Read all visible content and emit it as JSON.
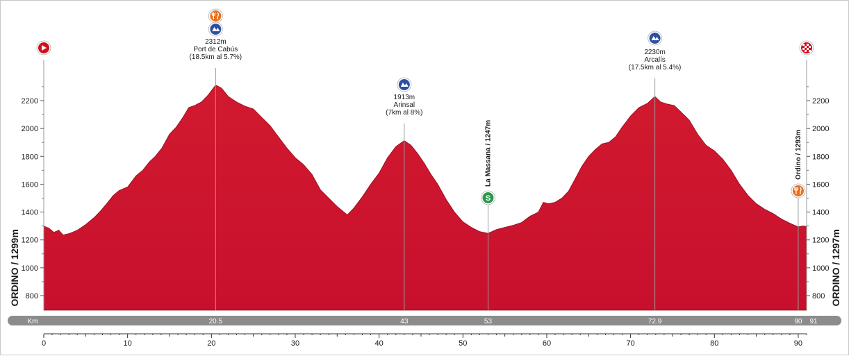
{
  "chart_data": {
    "type": "area",
    "ylabel_left": "ORDINO / 1299m",
    "ylabel_right": "ORDINO / 1297m",
    "ylim": [
      700,
      2450
    ],
    "xlim": [
      0,
      91
    ],
    "y_ticks": [
      800,
      1000,
      1200,
      1400,
      1600,
      1800,
      2000,
      2200
    ],
    "x_ticks": [
      0,
      10,
      20,
      30,
      40,
      50,
      60,
      70,
      80,
      90
    ],
    "km_bar": {
      "label": "Km",
      "marks": [
        {
          "x": 20.5,
          "label": "20.5"
        },
        {
          "x": 43,
          "label": "43"
        },
        {
          "x": 53,
          "label": "53"
        },
        {
          "x": 72.9,
          "label": "72.9"
        },
        {
          "x": 90,
          "label": "90"
        }
      ],
      "end_label": "91"
    },
    "fill_color": "#c8102e",
    "profile": [
      [
        0,
        1299
      ],
      [
        0.6,
        1285
      ],
      [
        1.2,
        1255
      ],
      [
        1.8,
        1270
      ],
      [
        2.3,
        1235
      ],
      [
        3,
        1245
      ],
      [
        4,
        1270
      ],
      [
        5,
        1310
      ],
      [
        6,
        1360
      ],
      [
        6.8,
        1410
      ],
      [
        7.5,
        1460
      ],
      [
        8.3,
        1520
      ],
      [
        9,
        1555
      ],
      [
        10,
        1580
      ],
      [
        11,
        1660
      ],
      [
        11.8,
        1700
      ],
      [
        12.6,
        1760
      ],
      [
        13.3,
        1800
      ],
      [
        14.1,
        1860
      ],
      [
        15,
        1960
      ],
      [
        15.8,
        2010
      ],
      [
        16.6,
        2080
      ],
      [
        17.3,
        2150
      ],
      [
        18,
        2165
      ],
      [
        18.8,
        2190
      ],
      [
        19.6,
        2240
      ],
      [
        20.5,
        2312
      ],
      [
        21.2,
        2290
      ],
      [
        22,
        2230
      ],
      [
        23,
        2190
      ],
      [
        24,
        2160
      ],
      [
        25,
        2140
      ],
      [
        26,
        2080
      ],
      [
        27,
        2020
      ],
      [
        28,
        1940
      ],
      [
        29,
        1860
      ],
      [
        30,
        1790
      ],
      [
        31,
        1740
      ],
      [
        32,
        1670
      ],
      [
        33,
        1560
      ],
      [
        34,
        1500
      ],
      [
        35,
        1440
      ],
      [
        36.2,
        1380
      ],
      [
        37,
        1430
      ],
      [
        38,
        1510
      ],
      [
        39,
        1600
      ],
      [
        40,
        1680
      ],
      [
        41,
        1790
      ],
      [
        42,
        1870
      ],
      [
        43,
        1913
      ],
      [
        43.8,
        1880
      ],
      [
        44.6,
        1820
      ],
      [
        45.4,
        1750
      ],
      [
        46.2,
        1670
      ],
      [
        47,
        1600
      ],
      [
        48,
        1490
      ],
      [
        49,
        1400
      ],
      [
        50,
        1330
      ],
      [
        51,
        1290
      ],
      [
        52,
        1260
      ],
      [
        53,
        1247
      ],
      [
        54,
        1275
      ],
      [
        55,
        1290
      ],
      [
        56,
        1305
      ],
      [
        57,
        1325
      ],
      [
        58,
        1370
      ],
      [
        59,
        1400
      ],
      [
        59.6,
        1470
      ],
      [
        60.2,
        1460
      ],
      [
        61,
        1470
      ],
      [
        61.8,
        1500
      ],
      [
        62.6,
        1550
      ],
      [
        63.4,
        1640
      ],
      [
        64.2,
        1730
      ],
      [
        65,
        1800
      ],
      [
        65.8,
        1850
      ],
      [
        66.6,
        1890
      ],
      [
        67.4,
        1900
      ],
      [
        68.2,
        1940
      ],
      [
        69,
        2010
      ],
      [
        70,
        2090
      ],
      [
        71,
        2150
      ],
      [
        72,
        2180
      ],
      [
        72.9,
        2230
      ],
      [
        73.6,
        2190
      ],
      [
        74.4,
        2175
      ],
      [
        75.2,
        2165
      ],
      [
        76,
        2120
      ],
      [
        77,
        2060
      ],
      [
        78,
        1960
      ],
      [
        79,
        1880
      ],
      [
        80,
        1840
      ],
      [
        81,
        1780
      ],
      [
        82,
        1700
      ],
      [
        83,
        1600
      ],
      [
        84,
        1520
      ],
      [
        85,
        1460
      ],
      [
        86,
        1420
      ],
      [
        87,
        1390
      ],
      [
        88,
        1350
      ],
      [
        89,
        1320
      ],
      [
        90,
        1293
      ],
      [
        90.5,
        1300
      ],
      [
        91,
        1297
      ]
    ],
    "annotations": [
      {
        "x": 20.5,
        "elev": 2312,
        "lines": [
          "2312m",
          "Port de Cabús",
          "(18.5km al 5.7%)"
        ],
        "icons": [
          "feed-icon",
          "climb-cat1-icon"
        ]
      },
      {
        "x": 43,
        "elev": 1913,
        "lines": [
          "1913m",
          "Arinsal",
          "(7km al 8%)"
        ],
        "icons": [
          "climb-cat2-icon"
        ]
      },
      {
        "x": 72.9,
        "elev": 2230,
        "lines": [
          "2230m",
          "Arcalís",
          "(17.5km al 5.4%)"
        ],
        "icons": [
          "climb-hc-icon"
        ]
      }
    ],
    "vertical_labels": [
      {
        "x": 53,
        "elev": 1247,
        "text": "La Massana / 1247m",
        "icon": "sprint-icon"
      },
      {
        "x": 90,
        "elev": 1293,
        "text": "Ordino / 1293m",
        "icon": "feed-icon"
      }
    ],
    "start_icon": "start-flag-icon",
    "finish_icon": "finish-flag-icon"
  }
}
